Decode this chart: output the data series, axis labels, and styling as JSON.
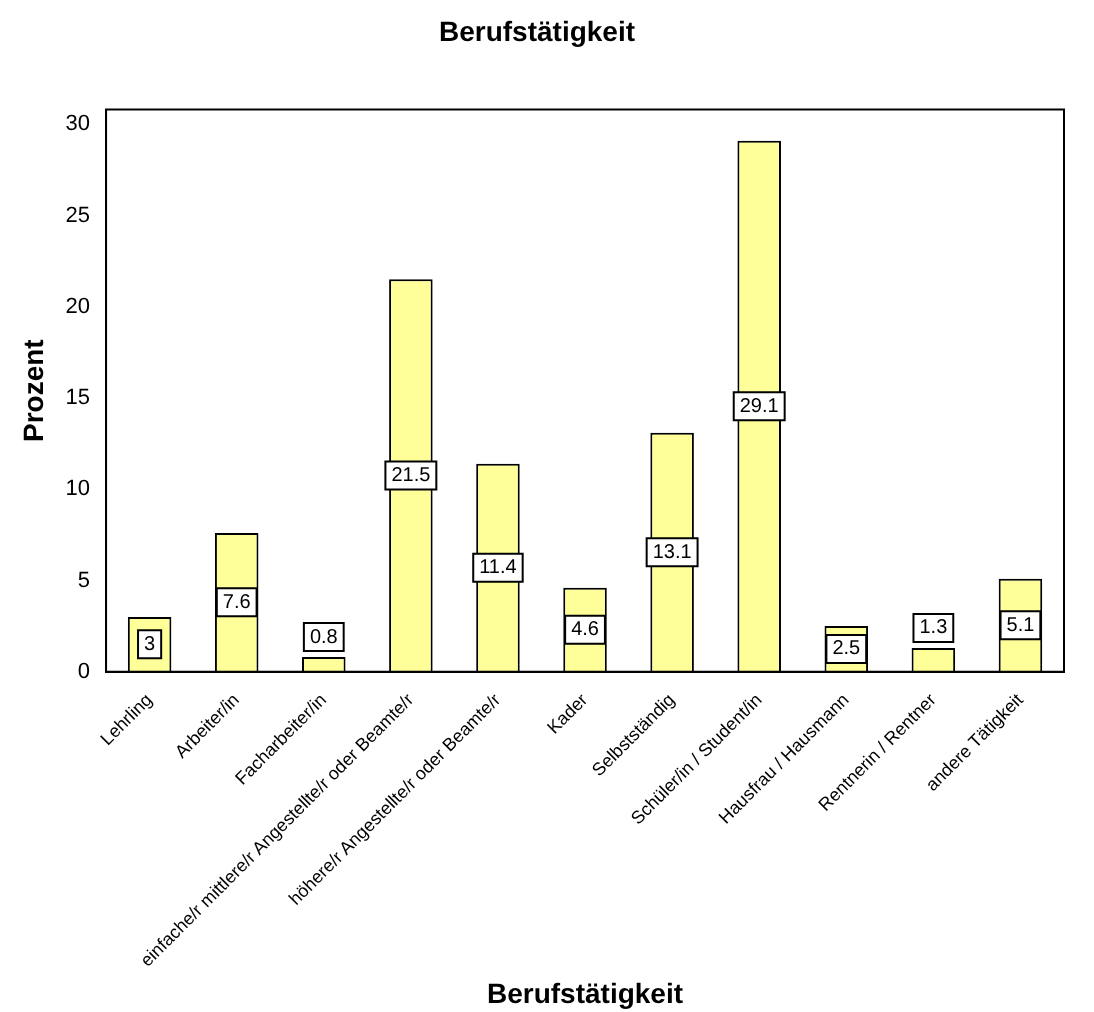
{
  "chart_data": {
    "type": "bar",
    "title": "Berufstätigkeit",
    "xlabel": "Berufstätigkeit",
    "ylabel": "Prozent",
    "categories": [
      "Lehrling",
      "Arbeiter/in",
      "Facharbeiter/in",
      "einfache/r mittlere/r Angestellte/r oder Beamte/r",
      "höhere/r Angestellte/r oder Beamte/r",
      "Kader",
      "Selbstständig",
      "Schüler/in / Student/in",
      "Hausfrau / Hausmann",
      "Rentnerin / Rentner",
      "andere Tätigkeit"
    ],
    "values": [
      3,
      7.6,
      0.8,
      21.5,
      11.4,
      4.6,
      13.1,
      29.1,
      2.5,
      1.3,
      5.1
    ],
    "color": "#ffff99",
    "ylim": [
      0,
      30.8
    ],
    "yticks": [
      0,
      5,
      10,
      15,
      20,
      25,
      30
    ],
    "grid": false,
    "legend": false,
    "data_labels": true
  }
}
